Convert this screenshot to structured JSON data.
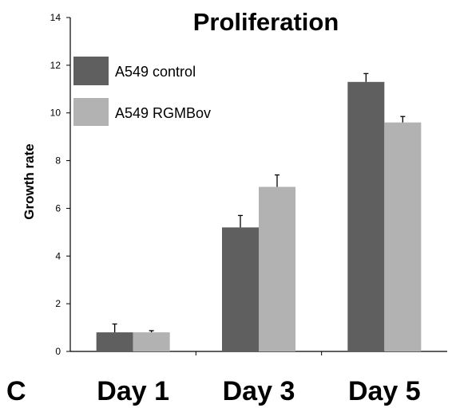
{
  "panel_label": "C",
  "chart_data": {
    "type": "bar",
    "title": "Proliferation",
    "xlabel": "",
    "ylabel": "Growth rate",
    "categories": [
      "Day 1",
      "Day 3",
      "Day 5"
    ],
    "series": [
      {
        "name": "A549 control",
        "color": "#5f5f5f",
        "values": [
          0.8,
          5.2,
          11.3
        ],
        "errors": [
          0.35,
          0.5,
          0.35
        ]
      },
      {
        "name": "A549 RGMBov",
        "color": "#b2b2b2",
        "values": [
          0.8,
          6.9,
          9.6
        ],
        "errors": [
          0.07,
          0.5,
          0.25
        ]
      }
    ],
    "ylim": [
      0,
      14
    ],
    "yticks": [
      0,
      2,
      4,
      6,
      8,
      10,
      12,
      14
    ],
    "legend_position": "top-left",
    "grid": false,
    "error_bars": true
  }
}
